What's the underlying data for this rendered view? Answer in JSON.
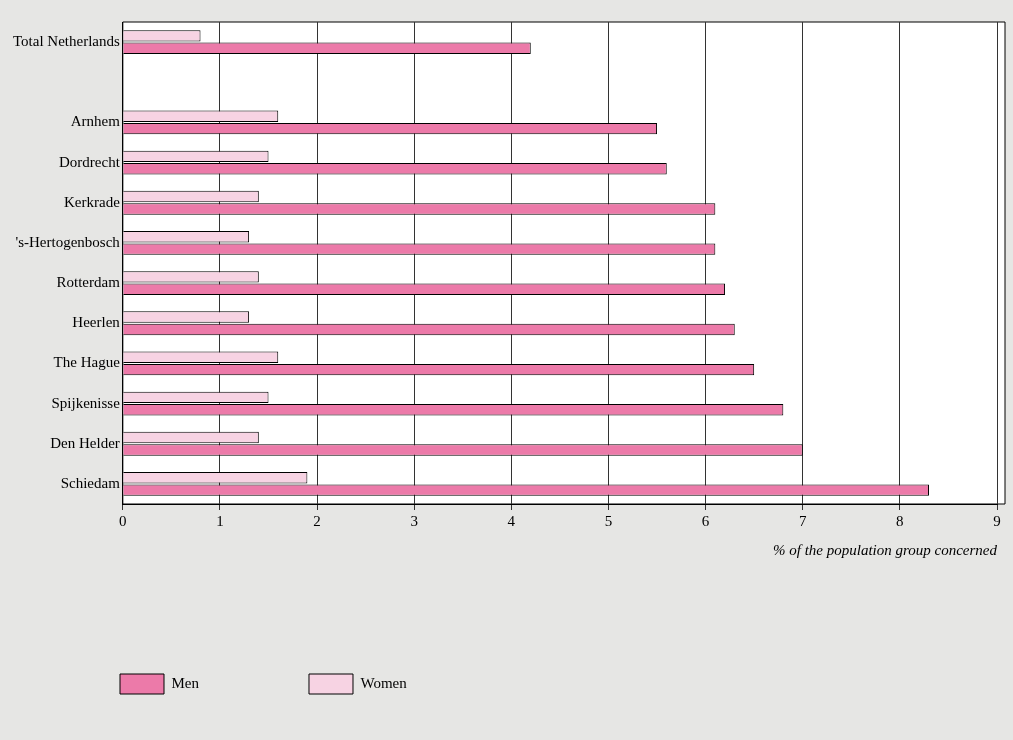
{
  "chart_data": {
    "type": "bar",
    "orientation": "horizontal",
    "xlabel": "% of the population group concerned",
    "categories": [
      "Total Netherlands",
      null,
      "Arnhem",
      "Dordrecht",
      "Kerkrade",
      "'s-Hertogenbosch",
      "Rotterdam",
      "Heerlen",
      "The Hague",
      "Spijkenisse",
      "Den Helder",
      "Schiedam"
    ],
    "series": [
      {
        "name": "Men",
        "color": "#ec7aa9",
        "values": [
          4.2,
          null,
          5.5,
          5.6,
          6.1,
          6.1,
          6.2,
          6.3,
          6.5,
          6.8,
          7.0,
          8.3
        ]
      },
      {
        "name": "Women",
        "color": "#f7d3e3",
        "values": [
          0.8,
          null,
          1.6,
          1.5,
          1.4,
          1.3,
          1.4,
          1.3,
          1.6,
          1.5,
          1.4,
          1.9
        ]
      }
    ],
    "xlim": [
      0,
      9
    ],
    "xticks": [
      0,
      1,
      2,
      3,
      4,
      5,
      6,
      7,
      8,
      9
    ],
    "grid": "x",
    "legend": "bottom"
  }
}
